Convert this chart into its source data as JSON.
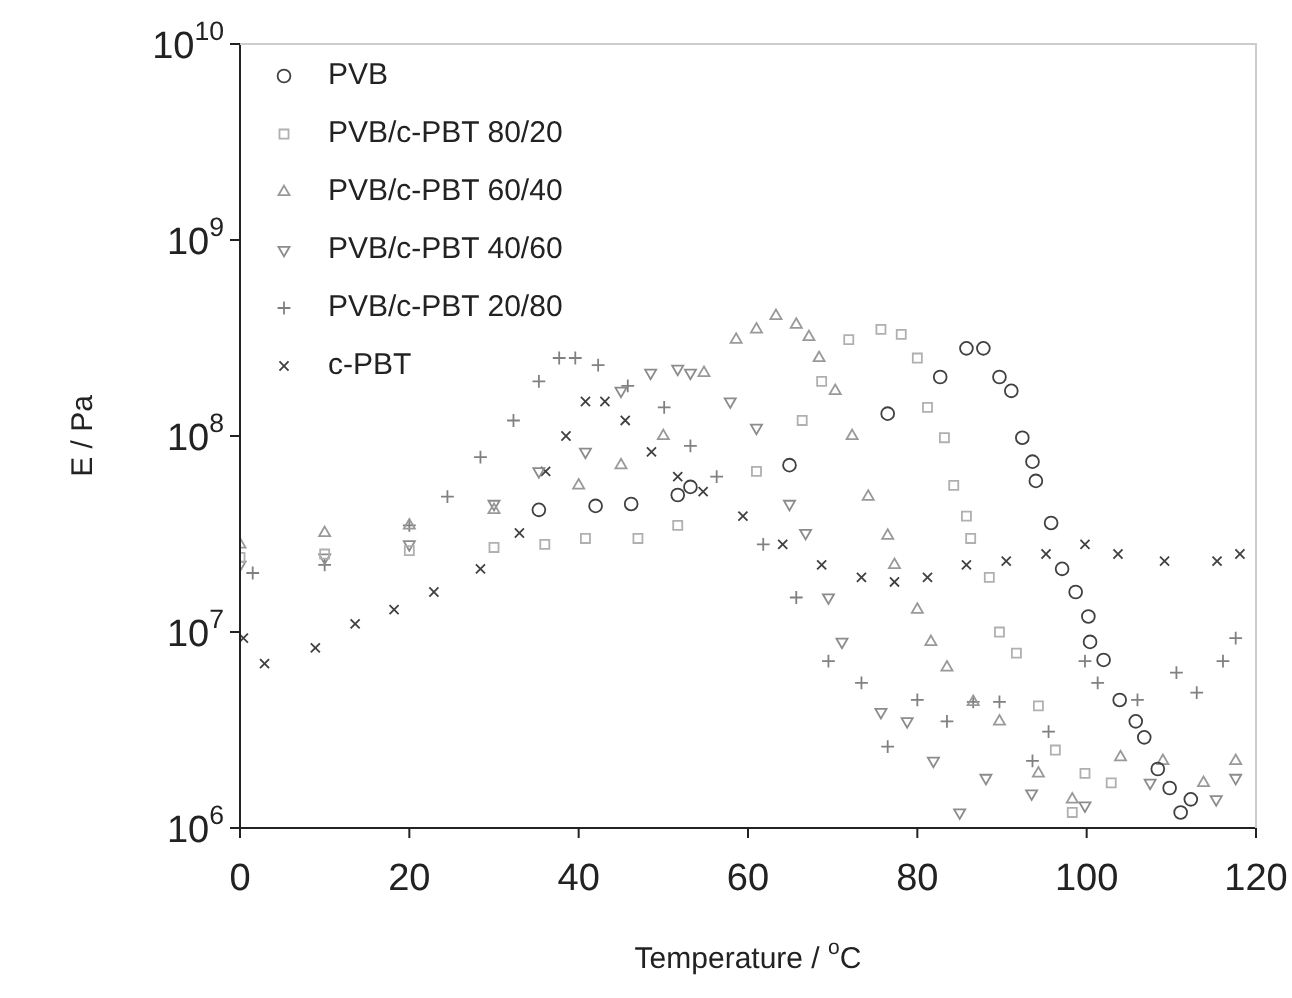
{
  "chart_data": {
    "type": "scatter",
    "xlabel": "Temperature / $^{o}$C",
    "ylabel": "E / Pa",
    "log": "y",
    "xlim": [
      0,
      120
    ],
    "xticks": [
      0,
      20,
      40,
      60,
      80,
      100,
      120
    ],
    "ylim": [
      1000000.0,
      10000000000.0
    ],
    "yticks": [
      {
        "value": 1000000.0,
        "label": "10$^{6}$"
      },
      {
        "value": 10000000.0,
        "label": "10$^{7}$"
      },
      {
        "value": 100000000.0,
        "label": "10$^{8}$"
      },
      {
        "value": 1000000000.0,
        "label": "10$^{9}$"
      },
      {
        "value": 10000000000.0,
        "label": "10$^{10}$"
      }
    ],
    "grid": false,
    "legend": "top left",
    "series": [
      {
        "name": "PVB",
        "color": "#404040",
        "marker": "circle",
        "x": [
          35.3,
          42,
          46.2,
          51.7,
          53.2,
          64.9,
          76.5,
          82.7,
          85.8,
          87.8,
          89.7,
          91.1,
          92.4,
          93.6,
          94,
          95.8,
          97.1,
          98.7,
          100.2,
          100.4,
          102,
          103.9,
          105.8,
          106.8,
          108.4,
          109.8,
          111.1,
          112.3
        ],
        "values": [
          42000000.0,
          44000000.0,
          45000000.0,
          50000000.0,
          55000000.0,
          71000000.0,
          130000000.0,
          200000000.0,
          280000000.0,
          280000000.0,
          200000000.0,
          170000000.0,
          98000000.0,
          74000000.0,
          59000000.0,
          36000000.0,
          21000000.0,
          16000000.0,
          12000000.0,
          8900000.0,
          7200000.0,
          4500000.0,
          3500000.0,
          2900000.0,
          2000000.0,
          1600000.0,
          1200000.0,
          1400000.0
        ]
      },
      {
        "name": "PVB/c-PBT 80/20",
        "color": "#b0b0b0",
        "marker": "square",
        "x": [
          0,
          10,
          20,
          30,
          36,
          40.8,
          47,
          51.7,
          61,
          66.4,
          68.7,
          71.9,
          75.7,
          78.1,
          80,
          81.2,
          83.2,
          84.3,
          85.8,
          86.3,
          88.5,
          89.7,
          91.7,
          94.3,
          96.3,
          98.3,
          99.8,
          102.9
        ],
        "values": [
          24000000.0,
          25000000.0,
          26000000.0,
          27000000.0,
          28000000.0,
          30000000.0,
          30000000.0,
          35000000.0,
          66000000.0,
          120000000.0,
          190000000.0,
          310000000.0,
          350000000.0,
          330000000.0,
          250000000.0,
          140000000.0,
          98000000.0,
          56000000.0,
          39000000.0,
          30000000.0,
          19000000.0,
          10000000.0,
          7800000.0,
          4200000.0,
          2500000.0,
          1200000.0,
          1900000.0,
          1700000.0
        ]
      },
      {
        "name": "PVB/c-PBT 60/40",
        "color": "#999999",
        "marker": "triangle",
        "x": [
          0,
          10,
          20,
          30,
          40,
          45,
          50,
          54.8,
          58.6,
          61,
          63.3,
          65.7,
          67.2,
          68.4,
          70.3,
          72.3,
          74.2,
          76.5,
          77.3,
          80,
          81.6,
          83.5,
          86.6,
          89.7,
          94.3,
          98.3,
          104,
          109,
          113.8,
          117.6
        ],
        "values": [
          28000000.0,
          32000000.0,
          35000000.0,
          42000000.0,
          56000000.0,
          71000000.0,
          100000000.0,
          210000000.0,
          310000000.0,
          350000000.0,
          410000000.0,
          370000000.0,
          320000000.0,
          250000000.0,
          170000000.0,
          100000000.0,
          49000000.0,
          31000000.0,
          22000000.0,
          13000000.0,
          8900000.0,
          6600000.0,
          4400000.0,
          3500000.0,
          1900000.0,
          1400000.0,
          2300000.0,
          2200000.0,
          1700000.0,
          2200000.0
        ]
      },
      {
        "name": "PVB/c-PBT 40/60",
        "color": "#8c8c8c",
        "marker": "triangle-down",
        "x": [
          0,
          10,
          20,
          30,
          35.3,
          40.8,
          45,
          48.5,
          51.7,
          53.2,
          57.9,
          61,
          64.9,
          66.8,
          69.5,
          71.1,
          75.7,
          78.8,
          81.9,
          85,
          88.1,
          93.5,
          99.8,
          107.5,
          115.3,
          117.6
        ],
        "values": [
          22000000.0,
          24000000.0,
          28000000.0,
          45000000.0,
          66000000.0,
          83000000.0,
          170000000.0,
          210000000.0,
          220000000.0,
          210000000.0,
          150000000.0,
          110000000.0,
          45000000.0,
          32000000.0,
          15000000.0,
          8900000.0,
          3900000.0,
          3500000.0,
          2200000.0,
          1200000.0,
          1800000.0,
          1500000.0,
          1300000.0,
          1700000.0,
          1400000.0,
          1800000.0
        ]
      },
      {
        "name": "PVB/c-PBT 20/80",
        "color": "#808080",
        "marker": "cross",
        "x": [
          1.5,
          10,
          20,
          24.5,
          28.4,
          32.3,
          35.3,
          37.7,
          39.6,
          42.3,
          45.8,
          50.1,
          53.2,
          56.3,
          61.8,
          65.7,
          69.5,
          73.4,
          76.5,
          80,
          83.5,
          86.6,
          89.7,
          93.6,
          95.5,
          99.8,
          101.3,
          106,
          110.6,
          113,
          116.1,
          117.6
        ],
        "values": [
          20000000.0,
          22000000.0,
          35000000.0,
          49000000.0,
          78000000.0,
          120000000.0,
          190000000.0,
          250000000.0,
          250000000.0,
          230000000.0,
          180000000.0,
          140000000.0,
          89000000.0,
          62000000.0,
          28000000.0,
          15000000.0,
          7100000.0,
          5500000.0,
          2600000.0,
          4500000.0,
          3500000.0,
          4400000.0,
          4400000.0,
          2200000.0,
          3100000.0,
          7100000.0,
          5500000.0,
          4500000.0,
          6200000.0,
          4900000.0,
          7100000.0,
          9300000.0
        ]
      },
      {
        "name": "c-PBT",
        "color": "#404040",
        "marker": "x",
        "x": [
          0.4,
          2.9,
          8.9,
          13.6,
          18.2,
          22.9,
          28.4,
          33,
          36.1,
          38.5,
          40.8,
          43.1,
          45.5,
          48.6,
          51.7,
          54.7,
          59.4,
          64.1,
          68.7,
          73.4,
          77.3,
          81.2,
          85.8,
          90.5,
          95.2,
          99.8,
          103.7,
          109.2,
          115.4,
          118.1
        ],
        "values": [
          9300000.0,
          6900000.0,
          8300000.0,
          11000000.0,
          13000000.0,
          16000000.0,
          21000000.0,
          32000000.0,
          66000000.0,
          100000000.0,
          150000000.0,
          150000000.0,
          120000000.0,
          83000000.0,
          62000000.0,
          52000000.0,
          39000000.0,
          28000000.0,
          22000000.0,
          19000000.0,
          18000000.0,
          19000000.0,
          22000000.0,
          23000000.0,
          25000000.0,
          28000000.0,
          25000000.0,
          23000000.0,
          23000000.0,
          25000000.0
        ]
      }
    ]
  }
}
